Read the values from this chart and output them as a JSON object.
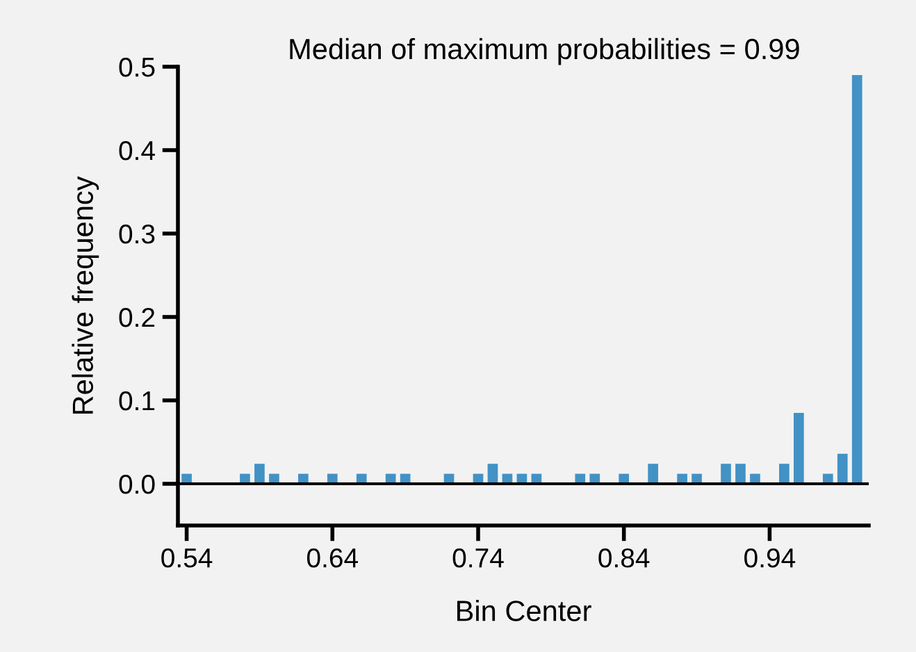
{
  "chart_data": {
    "type": "histogram",
    "title": "Median of maximum probabilities = 0.99",
    "xlabel": "Bin Center",
    "ylabel": "Relative frequency",
    "bins": [
      0.535,
      0.545,
      0.555,
      0.565,
      0.575,
      0.585,
      0.595,
      0.605,
      0.615,
      0.625,
      0.635,
      0.645,
      0.655,
      0.665,
      0.675,
      0.685,
      0.695,
      0.705,
      0.715,
      0.725,
      0.735,
      0.745,
      0.755,
      0.765,
      0.775,
      0.785,
      0.795,
      0.805,
      0.815,
      0.825,
      0.835,
      0.845,
      0.855,
      0.865,
      0.875,
      0.885,
      0.895,
      0.905,
      0.915,
      0.925,
      0.935,
      0.945,
      0.955,
      0.965,
      0.975,
      0.985,
      0.995,
      1.005
    ],
    "values": [
      0.012,
      0,
      0,
      0,
      0.012,
      0.024,
      0.012,
      0,
      0.012,
      0,
      0.012,
      0,
      0.012,
      0,
      0.012,
      0.012,
      0,
      0,
      0.012,
      0,
      0.012,
      0.024,
      0.012,
      0.012,
      0.012,
      0,
      0,
      0.012,
      0.012,
      0,
      0.012,
      0,
      0.024,
      0,
      0.012,
      0.012,
      0,
      0.024,
      0.024,
      0.012,
      0,
      0.024,
      0.085,
      0,
      0.012,
      0.036,
      0.49
    ],
    "color": "#4292c6",
    "xlim": [
      0.534,
      1.008
    ],
    "ylim": [
      -0.05,
      0.5
    ],
    "xticks": [
      {
        "value": 0.54,
        "label": "0.54"
      },
      {
        "value": 0.64,
        "label": "0.64"
      },
      {
        "value": 0.74,
        "label": "0.74"
      },
      {
        "value": 0.84,
        "label": "0.84"
      },
      {
        "value": 0.94,
        "label": "0.94"
      }
    ],
    "yticks": [
      {
        "value": 0,
        "label": "0.0"
      },
      {
        "value": 0.1,
        "label": "0.1"
      },
      {
        "value": 0.2,
        "label": "0.2"
      },
      {
        "value": 0.3,
        "label": "0.3"
      },
      {
        "value": 0.4,
        "label": "0.4"
      },
      {
        "value": 0.5,
        "label": "0.5"
      }
    ],
    "ref_lines": [
      {
        "axis": "y",
        "value": 0,
        "color": "#000000"
      }
    ],
    "grid": false,
    "legend": false
  }
}
